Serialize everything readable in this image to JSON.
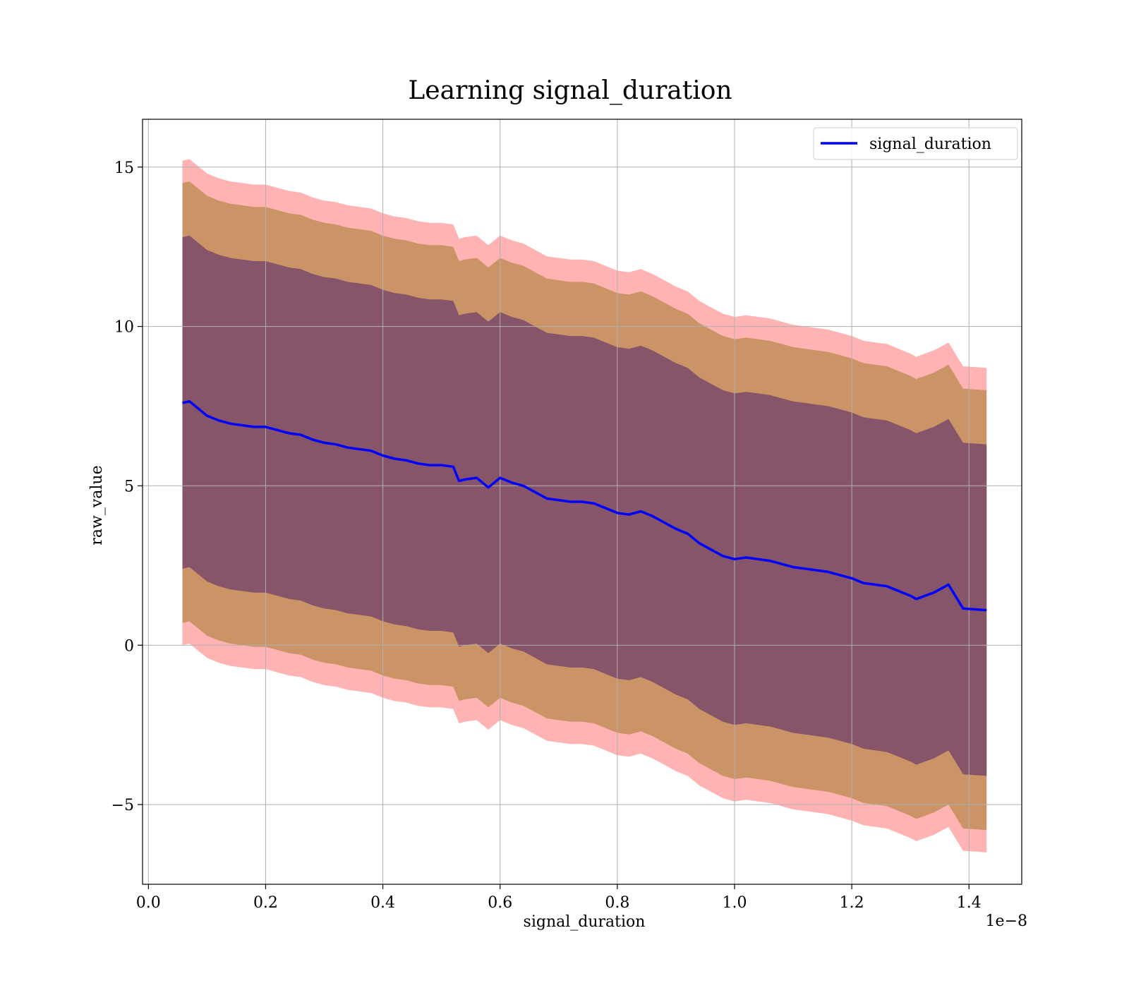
{
  "chart_data": {
    "type": "line",
    "title": "Learning signal_duration",
    "xlabel": "signal_duration",
    "ylabel": "raw_value",
    "x_offset_text": "1e−8",
    "xlim": [
      -0.01,
      1.49
    ],
    "ylim": [
      -7.5,
      16.5
    ],
    "x_ticks": [
      0.0,
      0.2,
      0.4,
      0.6,
      0.8,
      1.0,
      1.2,
      1.4
    ],
    "x_tick_labels": [
      "0.0",
      "0.2",
      "0.4",
      "0.6",
      "0.8",
      "1.0",
      "1.2",
      "1.4"
    ],
    "y_ticks": [
      -5,
      0,
      5,
      10,
      15
    ],
    "y_tick_labels": [
      "−5",
      "0",
      "5",
      "10",
      "15"
    ],
    "grid": true,
    "legend": {
      "position": "top-right",
      "entries": [
        "signal_duration"
      ]
    },
    "colors": {
      "line": "#0000ff",
      "band_outer": "#ff9999",
      "band_middle": "#b88a4e",
      "band_inner": "#7a4a6a"
    },
    "band_half_widths": {
      "outer_sd3": 7.6,
      "middle_sd2": 6.9,
      "inner_sd1": 5.2
    },
    "series": [
      {
        "name": "signal_duration",
        "x": [
          0.058,
          0.07,
          0.08,
          0.09,
          0.1,
          0.12,
          0.14,
          0.16,
          0.18,
          0.2,
          0.22,
          0.24,
          0.26,
          0.28,
          0.3,
          0.32,
          0.34,
          0.36,
          0.38,
          0.4,
          0.42,
          0.44,
          0.46,
          0.48,
          0.5,
          0.52,
          0.53,
          0.54,
          0.56,
          0.58,
          0.6,
          0.62,
          0.64,
          0.66,
          0.68,
          0.7,
          0.72,
          0.74,
          0.76,
          0.78,
          0.8,
          0.82,
          0.84,
          0.86,
          0.88,
          0.9,
          0.92,
          0.94,
          0.96,
          0.98,
          1.0,
          1.02,
          1.04,
          1.06,
          1.08,
          1.1,
          1.12,
          1.14,
          1.16,
          1.18,
          1.2,
          1.22,
          1.24,
          1.26,
          1.28,
          1.3,
          1.31,
          1.34,
          1.365,
          1.39,
          1.43
        ],
        "values": [
          7.6,
          7.65,
          7.5,
          7.35,
          7.2,
          7.05,
          6.95,
          6.9,
          6.85,
          6.85,
          6.75,
          6.65,
          6.6,
          6.45,
          6.35,
          6.3,
          6.2,
          6.15,
          6.1,
          5.95,
          5.85,
          5.8,
          5.7,
          5.65,
          5.65,
          5.6,
          5.15,
          5.2,
          5.25,
          4.95,
          5.25,
          5.1,
          5.0,
          4.8,
          4.6,
          4.55,
          4.5,
          4.5,
          4.45,
          4.3,
          4.15,
          4.1,
          4.2,
          4.05,
          3.85,
          3.65,
          3.5,
          3.2,
          3.0,
          2.8,
          2.7,
          2.75,
          2.7,
          2.65,
          2.55,
          2.45,
          2.4,
          2.35,
          2.3,
          2.2,
          2.1,
          1.95,
          1.9,
          1.85,
          1.7,
          1.55,
          1.45,
          1.65,
          1.9,
          1.15,
          1.1
        ]
      }
    ]
  }
}
